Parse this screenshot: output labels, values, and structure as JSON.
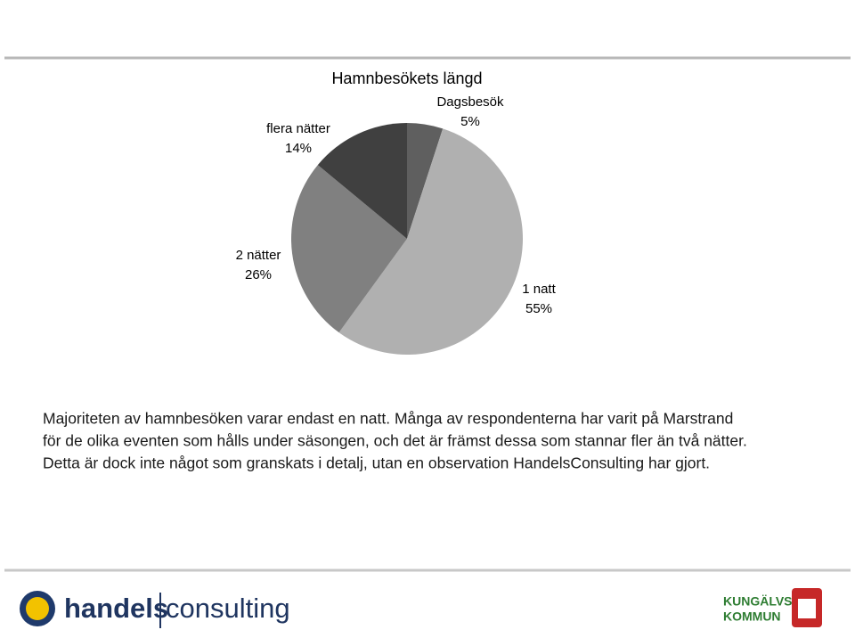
{
  "chart_data": {
    "type": "pie",
    "title": "Hamnbesökets längd",
    "categories": [
      "Dagsbesök",
      "1 natt",
      "2 nätter",
      "flera nätter"
    ],
    "values": [
      5,
      55,
      26,
      14
    ],
    "value_labels": [
      "5%",
      "55%",
      "26%",
      "14%"
    ],
    "colors": [
      "#5f5f5f",
      "#b0b0b0",
      "#808080",
      "#404040"
    ]
  },
  "body_text": [
    "Majoriteten av hamnbesöken varar endast en natt. Många av respondenterna har varit på Marstrand",
    "för de olika eventen som hålls under säsongen, och det är främst dessa som stannar fler än två nätter.",
    "Detta är dock inte något som granskats i detalj, utan en observation HandelsConsulting har gjort."
  ],
  "footer": {
    "left_logo": [
      "handels",
      "consulting"
    ],
    "right_logo": [
      "KUNGÄLVS",
      "KOMMUN"
    ]
  }
}
